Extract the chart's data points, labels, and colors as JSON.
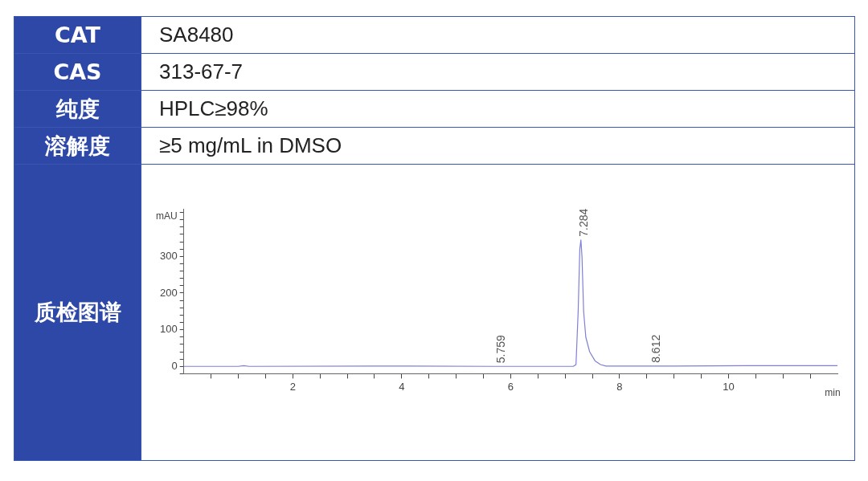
{
  "chart_data": [
    {
      "type": "other",
      "annotations": [
        "CAT",
        "SA8480",
        "CAS",
        "313-67-7",
        "纯度",
        "HPLC≥98%",
        "溶解度",
        "≥5 mg/mL in DMSO",
        "质检图谱"
      ]
    },
    {
      "type": "line",
      "xlabel": "min",
      "ylabel": "mAU",
      "xlim": [
        0,
        12
      ],
      "ylim": [
        -20,
        430
      ],
      "xticks": [
        {
          "value": 0.5,
          "label": null
        },
        {
          "value": 1,
          "label": null
        },
        {
          "value": 1.5,
          "label": null
        },
        2,
        {
          "value": 2.5,
          "label": null
        },
        {
          "value": 3,
          "label": null
        },
        {
          "value": 3.5,
          "label": null
        },
        4,
        {
          "value": 4.5,
          "label": null
        },
        {
          "value": 5,
          "label": null
        },
        {
          "value": 5.5,
          "label": null
        },
        6,
        {
          "value": 6.5,
          "label": null
        },
        {
          "value": 7,
          "label": null
        },
        {
          "value": 7.5,
          "label": null
        },
        8,
        {
          "value": 8.5,
          "label": null
        },
        {
          "value": 9,
          "label": null
        },
        {
          "value": 9.5,
          "label": null
        },
        10,
        {
          "value": 10.5,
          "label": null
        },
        {
          "value": 11,
          "label": null
        },
        {
          "value": 11.5,
          "label": null
        }
      ],
      "yticks": [
        {
          "value": -20,
          "label": null
        },
        0,
        {
          "value": 20,
          "label": null
        },
        {
          "value": 40,
          "label": null
        },
        {
          "value": 60,
          "label": null
        },
        {
          "value": 80,
          "label": null
        },
        100,
        {
          "value": 120,
          "label": null
        },
        {
          "value": 140,
          "label": null
        },
        {
          "value": 160,
          "label": null
        },
        {
          "value": 180,
          "label": null
        },
        200,
        {
          "value": 220,
          "label": null
        },
        {
          "value": 240,
          "label": null
        },
        {
          "value": 260,
          "label": null
        },
        {
          "value": 280,
          "label": null
        },
        300,
        {
          "value": 320,
          "label": null
        },
        {
          "value": 340,
          "label": null
        },
        {
          "value": 360,
          "label": null
        },
        {
          "value": 380,
          "label": null
        },
        {
          "value": 400,
          "label": null
        },
        {
          "value": 420,
          "label": null
        }
      ],
      "marker": "none",
      "series": [
        {
          "color": "#7f7fd6",
          "x": [
            0,
            1,
            1.1,
            1.2,
            3.5,
            5.7,
            7.15,
            7.2,
            7.24,
            7.27,
            7.29,
            7.31,
            7.34,
            7.38,
            7.45,
            7.55,
            7.65,
            7.75,
            9,
            10.3,
            12
          ],
          "values": [
            0,
            0,
            2,
            0,
            1,
            0,
            0,
            5,
            150,
            320,
            345,
            300,
            150,
            80,
            40,
            15,
            5,
            1,
            1,
            2,
            2
          ]
        }
      ],
      "annotations": [
        {
          "text": "5.759",
          "x": 5.759,
          "y": 0
        },
        {
          "text": "7.284",
          "x": 7.284,
          "y": 345
        },
        {
          "text": "8.612",
          "x": 8.612,
          "y": 1
        }
      ]
    }
  ]
}
